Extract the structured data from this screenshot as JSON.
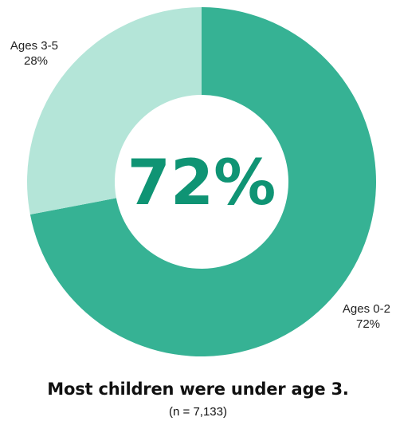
{
  "chart_data": {
    "type": "pie",
    "donut": true,
    "center_text": "72%",
    "slices": [
      {
        "label": "Ages 0-2",
        "value_label": "72%",
        "value": 72,
        "color": "#36b294"
      },
      {
        "label": "Ages 3-5",
        "value_label": "28%",
        "value": 28,
        "color": "#b4e5d8"
      }
    ],
    "center_text_color": "#0f9474"
  },
  "caption": {
    "title": "Most children were under age 3.",
    "subtitle": "(n = 7,133)"
  }
}
